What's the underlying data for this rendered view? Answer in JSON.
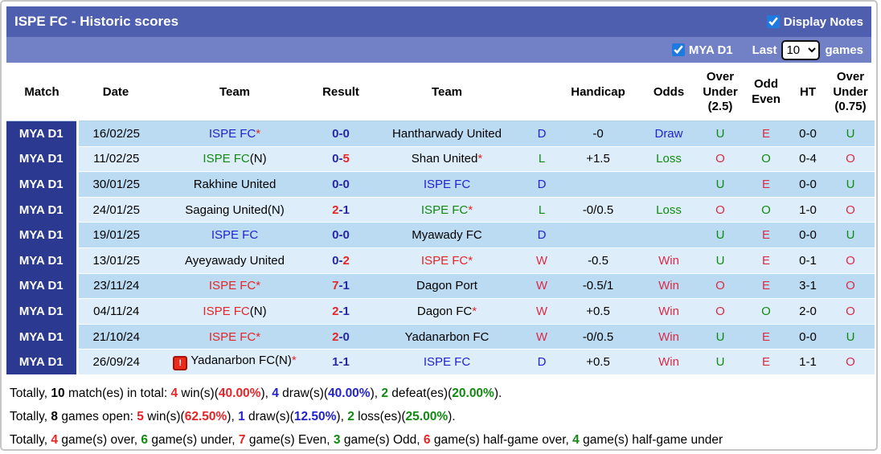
{
  "header": {
    "title": "ISPE FC - Historic scores",
    "display_notes_label": "Display Notes",
    "display_notes_checked": true
  },
  "filter_bar": {
    "league_label": "MYA D1",
    "league_checked": true,
    "last_label": "Last",
    "games_count": "10",
    "games_label": "games"
  },
  "icons": {
    "note_glyph": "!"
  },
  "separators": {
    "score_dash": "-",
    "star": "*"
  },
  "colors": {
    "title_bar": "#4d5fae",
    "filter_bar": "#7281c5",
    "league_cell": "#2b3a90",
    "row_odd": "#bbdbf3",
    "row_even": "#ddeefa",
    "navy": "#2828a2",
    "blue": "#2323cd",
    "red": "#e52528",
    "crimson": "#dc2a45",
    "green": "#128a12",
    "checkbox_accent": "#1f7ae0"
  },
  "table": {
    "columns": [
      "Match",
      "Date",
      "Team",
      "Result",
      "Team",
      "",
      "Handicap",
      "Odds",
      "Over Under (2.5)",
      "Odd Even",
      "HT",
      "Over Under (0.75)"
    ],
    "rows": [
      {
        "league": "MYA D1",
        "date": "16/02/25",
        "home": {
          "name": "ISPE FC",
          "color": "blue",
          "tag": "",
          "star": true
        },
        "score": {
          "home": "0",
          "away": "0",
          "home_color": "navy",
          "away_color": "navy"
        },
        "away": {
          "name": "Hantharwady United",
          "color": "black",
          "tag": "",
          "star": false
        },
        "wdl": {
          "text": "D",
          "color": "blue"
        },
        "handicap": "-0",
        "odds": {
          "text": "Draw",
          "color": "blue"
        },
        "ou25": {
          "text": "U",
          "color": "green"
        },
        "odd_even": {
          "text": "E",
          "color": "crimson"
        },
        "ht": "0-0",
        "ou075": {
          "text": "U",
          "color": "green"
        }
      },
      {
        "league": "MYA D1",
        "date": "11/02/25",
        "home": {
          "name": "ISPE FC",
          "color": "green",
          "tag": "(N)",
          "star": false
        },
        "score": {
          "home": "0",
          "away": "5",
          "home_color": "navy",
          "away_color": "red"
        },
        "away": {
          "name": "Shan United",
          "color": "black",
          "tag": "",
          "star": true
        },
        "wdl": {
          "text": "L",
          "color": "green"
        },
        "handicap": "+1.5",
        "odds": {
          "text": "Loss",
          "color": "green"
        },
        "ou25": {
          "text": "O",
          "color": "crimson"
        },
        "odd_even": {
          "text": "O",
          "color": "green"
        },
        "ht": "0-4",
        "ou075": {
          "text": "O",
          "color": "crimson"
        }
      },
      {
        "league": "MYA D1",
        "date": "30/01/25",
        "home": {
          "name": "Rakhine United",
          "color": "black",
          "tag": "",
          "star": false
        },
        "score": {
          "home": "0",
          "away": "0",
          "home_color": "navy",
          "away_color": "navy"
        },
        "away": {
          "name": "ISPE FC",
          "color": "blue",
          "tag": "",
          "star": false
        },
        "wdl": {
          "text": "D",
          "color": "blue"
        },
        "handicap": "",
        "odds": {
          "text": "",
          "color": ""
        },
        "ou25": {
          "text": "U",
          "color": "green"
        },
        "odd_even": {
          "text": "E",
          "color": "crimson"
        },
        "ht": "0-0",
        "ou075": {
          "text": "U",
          "color": "green"
        }
      },
      {
        "league": "MYA D1",
        "date": "24/01/25",
        "home": {
          "name": "Sagaing United(N)",
          "color": "black",
          "tag": "",
          "star": false
        },
        "score": {
          "home": "2",
          "away": "1",
          "home_color": "red",
          "away_color": "navy"
        },
        "away": {
          "name": "ISPE FC",
          "color": "green",
          "tag": "",
          "star": true
        },
        "wdl": {
          "text": "L",
          "color": "green"
        },
        "handicap": "-0/0.5",
        "odds": {
          "text": "Loss",
          "color": "green"
        },
        "ou25": {
          "text": "O",
          "color": "crimson"
        },
        "odd_even": {
          "text": "O",
          "color": "green"
        },
        "ht": "1-0",
        "ou075": {
          "text": "O",
          "color": "crimson"
        }
      },
      {
        "league": "MYA D1",
        "date": "19/01/25",
        "home": {
          "name": "ISPE FC",
          "color": "blue",
          "tag": "",
          "star": false
        },
        "score": {
          "home": "0",
          "away": "0",
          "home_color": "navy",
          "away_color": "navy"
        },
        "away": {
          "name": "Myawady FC",
          "color": "black",
          "tag": "",
          "star": false
        },
        "wdl": {
          "text": "D",
          "color": "blue"
        },
        "handicap": "",
        "odds": {
          "text": "",
          "color": ""
        },
        "ou25": {
          "text": "U",
          "color": "green"
        },
        "odd_even": {
          "text": "E",
          "color": "crimson"
        },
        "ht": "0-0",
        "ou075": {
          "text": "U",
          "color": "green"
        }
      },
      {
        "league": "MYA D1",
        "date": "13/01/25",
        "home": {
          "name": "Ayeyawady United",
          "color": "black",
          "tag": "",
          "star": false
        },
        "score": {
          "home": "0",
          "away": "2",
          "home_color": "navy",
          "away_color": "red"
        },
        "away": {
          "name": "ISPE FC",
          "color": "red",
          "tag": "",
          "star": true
        },
        "wdl": {
          "text": "W",
          "color": "crimson"
        },
        "handicap": "-0.5",
        "odds": {
          "text": "Win",
          "color": "crimson"
        },
        "ou25": {
          "text": "U",
          "color": "green"
        },
        "odd_even": {
          "text": "E",
          "color": "crimson"
        },
        "ht": "0-1",
        "ou075": {
          "text": "O",
          "color": "crimson"
        }
      },
      {
        "league": "MYA D1",
        "date": "23/11/24",
        "home": {
          "name": "ISPE FC",
          "color": "red",
          "tag": "",
          "star": true
        },
        "score": {
          "home": "7",
          "away": "1",
          "home_color": "red",
          "away_color": "navy"
        },
        "away": {
          "name": "Dagon Port",
          "color": "black",
          "tag": "",
          "star": false
        },
        "wdl": {
          "text": "W",
          "color": "crimson"
        },
        "handicap": "-0.5/1",
        "odds": {
          "text": "Win",
          "color": "crimson"
        },
        "ou25": {
          "text": "O",
          "color": "crimson"
        },
        "odd_even": {
          "text": "E",
          "color": "crimson"
        },
        "ht": "3-1",
        "ou075": {
          "text": "O",
          "color": "crimson"
        }
      },
      {
        "league": "MYA D1",
        "date": "04/11/24",
        "home": {
          "name": "ISPE FC",
          "color": "red",
          "tag": "(N)",
          "star": false
        },
        "score": {
          "home": "2",
          "away": "1",
          "home_color": "red",
          "away_color": "navy"
        },
        "away": {
          "name": "Dagon FC",
          "color": "black",
          "tag": "",
          "star": true
        },
        "wdl": {
          "text": "W",
          "color": "crimson"
        },
        "handicap": "+0.5",
        "odds": {
          "text": "Win",
          "color": "crimson"
        },
        "ou25": {
          "text": "O",
          "color": "crimson"
        },
        "odd_even": {
          "text": "O",
          "color": "green"
        },
        "ht": "2-0",
        "ou075": {
          "text": "O",
          "color": "crimson"
        }
      },
      {
        "league": "MYA D1",
        "date": "21/10/24",
        "home": {
          "name": "ISPE FC",
          "color": "red",
          "tag": "",
          "star": true
        },
        "score": {
          "home": "2",
          "away": "0",
          "home_color": "red",
          "away_color": "navy"
        },
        "away": {
          "name": "Yadanarbon FC",
          "color": "black",
          "tag": "",
          "star": false
        },
        "wdl": {
          "text": "W",
          "color": "crimson"
        },
        "handicap": "-0/0.5",
        "odds": {
          "text": "Win",
          "color": "crimson"
        },
        "ou25": {
          "text": "U",
          "color": "green"
        },
        "odd_even": {
          "text": "E",
          "color": "crimson"
        },
        "ht": "0-0",
        "ou075": {
          "text": "U",
          "color": "green"
        }
      },
      {
        "league": "MYA D1",
        "date": "26/09/24",
        "home": {
          "name": "Yadanarbon FC(N)",
          "color": "black",
          "tag": "",
          "star": true,
          "note": true
        },
        "score": {
          "home": "1",
          "away": "1",
          "home_color": "navy",
          "away_color": "navy"
        },
        "away": {
          "name": "ISPE FC",
          "color": "blue",
          "tag": "",
          "star": false
        },
        "wdl": {
          "text": "D",
          "color": "blue"
        },
        "handicap": "+0.5",
        "odds": {
          "text": "Win",
          "color": "crimson"
        },
        "ou25": {
          "text": "U",
          "color": "green"
        },
        "odd_even": {
          "text": "E",
          "color": "crimson"
        },
        "ht": "1-1",
        "ou075": {
          "text": "O",
          "color": "crimson"
        }
      }
    ]
  },
  "totals": [
    [
      {
        "t": "Totally, "
      },
      {
        "t": "10",
        "b": true
      },
      {
        "t": " match(es) in total: "
      },
      {
        "t": "4",
        "c": "red",
        "b": true
      },
      {
        "t": " win(s)("
      },
      {
        "t": "40.00%",
        "c": "red",
        "b": true
      },
      {
        "t": "), "
      },
      {
        "t": "4",
        "c": "blue",
        "b": true
      },
      {
        "t": " draw(s)("
      },
      {
        "t": "40.00%",
        "c": "blue",
        "b": true
      },
      {
        "t": "), "
      },
      {
        "t": "2",
        "c": "green",
        "b": true
      },
      {
        "t": " defeat(es)("
      },
      {
        "t": "20.00%",
        "c": "green",
        "b": true
      },
      {
        "t": ")."
      }
    ],
    [
      {
        "t": "Totally, "
      },
      {
        "t": "8",
        "b": true
      },
      {
        "t": " games open: "
      },
      {
        "t": "5",
        "c": "red",
        "b": true
      },
      {
        "t": " win(s)("
      },
      {
        "t": "62.50%",
        "c": "red",
        "b": true
      },
      {
        "t": "), "
      },
      {
        "t": "1",
        "c": "blue",
        "b": true
      },
      {
        "t": " draw(s)("
      },
      {
        "t": "12.50%",
        "c": "blue",
        "b": true
      },
      {
        "t": "), "
      },
      {
        "t": "2",
        "c": "green",
        "b": true
      },
      {
        "t": " loss(es)("
      },
      {
        "t": "25.00%",
        "c": "green",
        "b": true
      },
      {
        "t": ")."
      }
    ],
    [
      {
        "t": "Totally, "
      },
      {
        "t": "4",
        "c": "red",
        "b": true
      },
      {
        "t": " game(s) over, "
      },
      {
        "t": "6",
        "c": "green",
        "b": true
      },
      {
        "t": " game(s) under, "
      },
      {
        "t": "7",
        "c": "red",
        "b": true
      },
      {
        "t": " game(s) Even, "
      },
      {
        "t": "3",
        "c": "green",
        "b": true
      },
      {
        "t": " game(s) Odd, "
      },
      {
        "t": "6",
        "c": "red",
        "b": true
      },
      {
        "t": " game(s) half-game over, "
      },
      {
        "t": "4",
        "c": "green",
        "b": true
      },
      {
        "t": " game(s) half-game under"
      }
    ]
  ]
}
